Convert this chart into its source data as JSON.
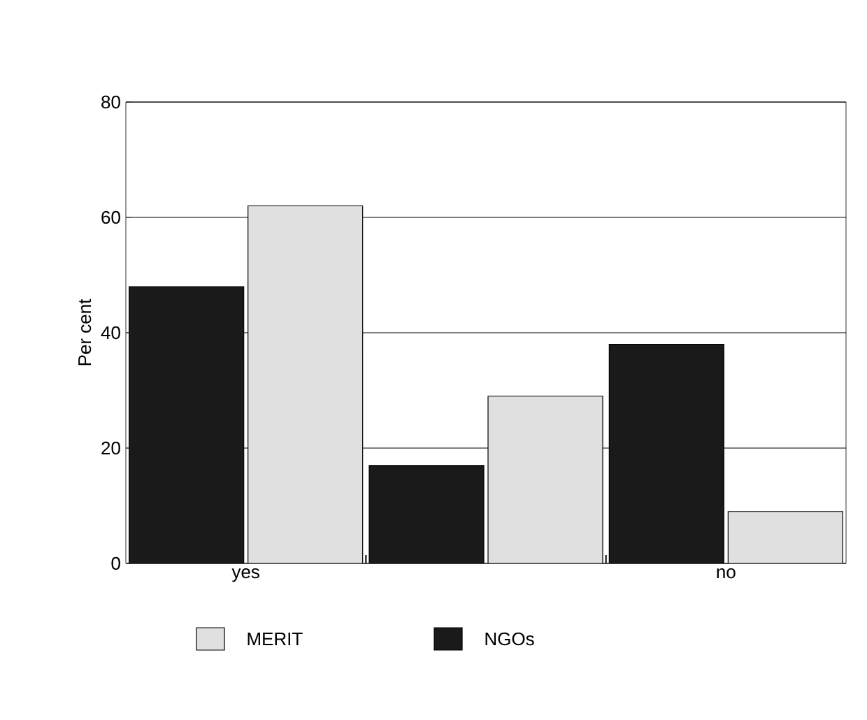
{
  "chart_data": {
    "type": "bar",
    "ylabel": "Per cent",
    "categories": [
      "yes",
      null,
      "no"
    ],
    "series": [
      {
        "name": "NGOs",
        "color": "#1a1a1a",
        "values": [
          48,
          17,
          38
        ]
      },
      {
        "name": "MERIT",
        "color": "#e0e0e0",
        "values": [
          62,
          29,
          9
        ]
      }
    ],
    "ylim": [
      0,
      80
    ],
    "yticks": [
      0,
      20,
      40,
      60,
      80
    ],
    "grid": "y",
    "legend": "bottom"
  }
}
